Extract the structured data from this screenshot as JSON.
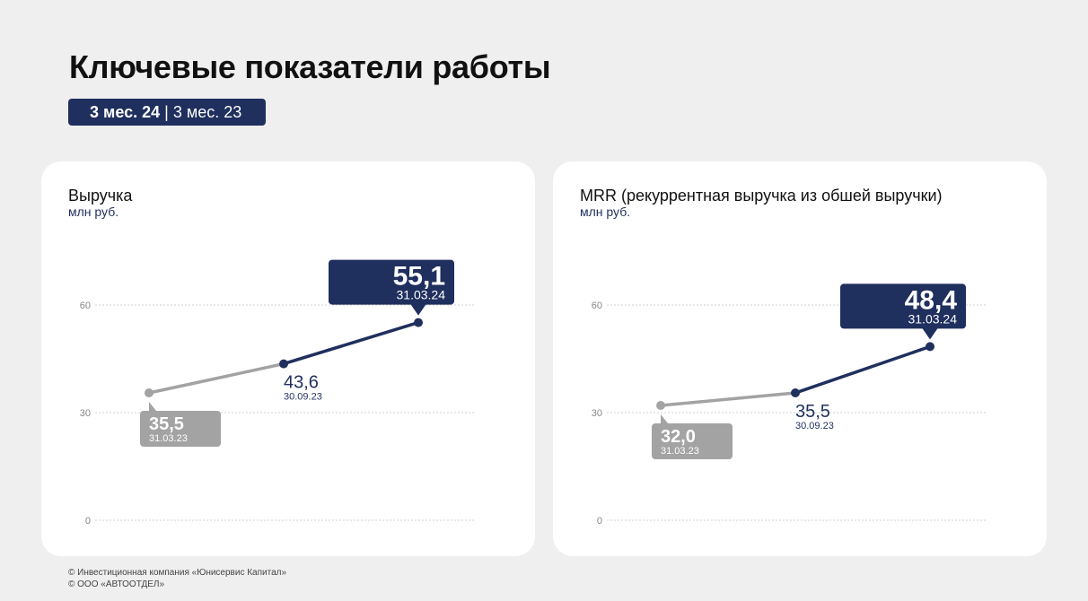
{
  "page": {
    "title": "Ключевые показатели работы",
    "period_current": "3 мес. 24",
    "period_separator": " | ",
    "period_previous": "3 мес. 23"
  },
  "colors": {
    "accent": "#1f2f5e",
    "previous": "#a3a3a3",
    "grid": "#d0d0d0",
    "background": "#efefef",
    "card": "#ffffff"
  },
  "chart_data": [
    {
      "type": "line",
      "title": "Выручка",
      "unit": "млн руб.",
      "ylim": [
        0,
        60
      ],
      "yticks": [
        0,
        30,
        60
      ],
      "grid": true,
      "x": [
        "31.03.23",
        "30.09.23",
        "31.03.24"
      ],
      "y": [
        35.5,
        43.6,
        55.1
      ],
      "labels": [
        "35,5",
        "43,6",
        "55,1"
      ],
      "series_segments": [
        "previous",
        "current"
      ]
    },
    {
      "type": "line",
      "title": "MRR (рекуррентная выручка из обшей выручки)",
      "unit": "млн руб.",
      "ylim": [
        0,
        60
      ],
      "yticks": [
        0,
        30,
        60
      ],
      "grid": true,
      "x": [
        "31.03.23",
        "30.09.23",
        "31.03.24"
      ],
      "y": [
        32.0,
        35.5,
        48.4
      ],
      "labels": [
        "32,0",
        "35,5",
        "48,4"
      ],
      "series_segments": [
        "previous",
        "current"
      ]
    }
  ],
  "footer": {
    "line1": "© Инвестиционная компания «Юнисервис Капитал»",
    "line2": "© ООО «АВТООТДЕЛ»"
  }
}
